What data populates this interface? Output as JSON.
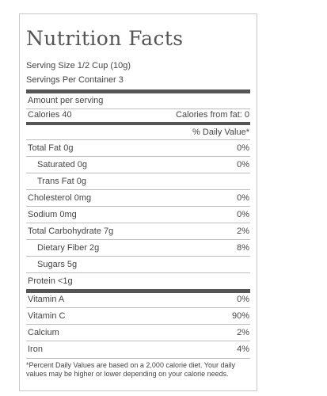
{
  "label": {
    "title": "Nutrition Facts",
    "serving_size": "Serving Size 1/2 Cup (10g)",
    "servings_per_container": "Servings Per Container 3",
    "amount_per_serving": "Amount per serving",
    "calories": "Calories 40",
    "calories_from_fat": "Calories from fat: 0",
    "daily_value_header": "% Daily Value*",
    "nutrients": [
      {
        "label": "Total Fat 0g",
        "value": "0%"
      },
      {
        "label": "Saturated 0g",
        "value": "0%"
      },
      {
        "label": "Trans Fat 0g",
        "value": ""
      },
      {
        "label": "Cholesterol 0mg",
        "value": "0%"
      },
      {
        "label": "Sodium 0mg",
        "value": "0%"
      },
      {
        "label": "Total Carbohydrate 7g",
        "value": "2%"
      },
      {
        "label": "Dietary Fiber 2g",
        "value": "8%"
      },
      {
        "label": "Sugars 5g",
        "value": ""
      },
      {
        "label": "Protein <1g",
        "value": ""
      }
    ],
    "vitamins": [
      {
        "label": "Vitamin A",
        "value": "0%"
      },
      {
        "label": "Vitamin C",
        "value": "90%"
      },
      {
        "label": "Calcium",
        "value": "2%"
      },
      {
        "label": "Iron",
        "value": "4%"
      }
    ],
    "footnote": "*Percent Daily Values are based on a 2,000 calorie diet. Your daily values may be higher or lower depending on your calorie needs."
  }
}
